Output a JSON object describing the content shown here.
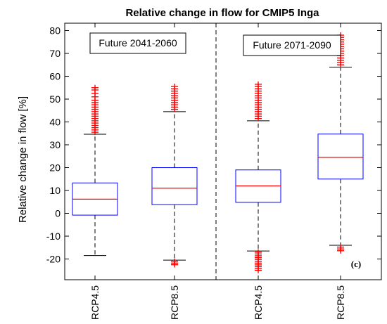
{
  "chart_data": {
    "type": "boxplot",
    "title": "Relative change in flow for CMIP5 Inga",
    "ylabel": "Relative change in flow [%]",
    "xlabel": "",
    "ylim": [
      -25,
      82
    ],
    "yticks": [
      -20,
      -10,
      0,
      10,
      20,
      30,
      40,
      50,
      60,
      70,
      80
    ],
    "categories": [
      "RCP4.5",
      "RCP8.5",
      "RCP4.5",
      "RCP8.5"
    ],
    "periods": [
      {
        "label": "Future 2041-2060",
        "categories": [
          0,
          1
        ]
      },
      {
        "label": "Future 2071-2090",
        "categories": [
          2,
          3
        ]
      }
    ],
    "panel_label": "(c)",
    "colors": {
      "box": "#0000ff",
      "median": "#ff0000",
      "whisker": "#000000",
      "outlier": "#ff0000"
    },
    "boxes": [
      {
        "category": "RCP4.5",
        "whisker_low": -18.5,
        "q1": -0.8,
        "median": 6.2,
        "q3": 13.3,
        "whisker_high": 34.6,
        "outliers_high": [
          35.5,
          36.5,
          37.5,
          38.5,
          39.5,
          40.5,
          41.5,
          42.5,
          43.5,
          44.5,
          45.5,
          46.5,
          47.5,
          48.5,
          49.5,
          51,
          52.5,
          54,
          55
        ],
        "outliers_low": []
      },
      {
        "category": "RCP8.5",
        "whisker_low": -20.5,
        "q1": 3.8,
        "median": 11,
        "q3": 20,
        "whisker_high": 44.5,
        "outliers_high": [
          45.5,
          46.5,
          47.5,
          48.5,
          49.5,
          50.5,
          51.5,
          52.5,
          53.5,
          54.5,
          55.5
        ],
        "outliers_low": [
          -21,
          -21.8,
          -22.5
        ]
      },
      {
        "category": "RCP4.5",
        "whisker_low": -16.5,
        "q1": 4.8,
        "median": 12,
        "q3": 19,
        "whisker_high": 40.5,
        "outliers_high": [
          41.5,
          42.5,
          43.5,
          44.5,
          45.5,
          46.5,
          47.5,
          48.5,
          49.5,
          50.5,
          51.5,
          52.5,
          53.5,
          54.5,
          55.5,
          56.5
        ],
        "outliers_low": [
          -17,
          -17.8,
          -18.6,
          -19.4,
          -20.2,
          -21,
          -21.8,
          -22.6,
          -23.4,
          -24.2,
          -25
        ]
      },
      {
        "category": "RCP8.5",
        "whisker_low": -14,
        "q1": 15,
        "median": 24.5,
        "q3": 34.7,
        "whisker_high": 64,
        "outliers_high": [
          65,
          66,
          67,
          68,
          69,
          70,
          71,
          72,
          73,
          74,
          75,
          76,
          77,
          78
        ],
        "outliers_low": [
          -14.8,
          -15.6,
          -16.4
        ]
      }
    ]
  }
}
